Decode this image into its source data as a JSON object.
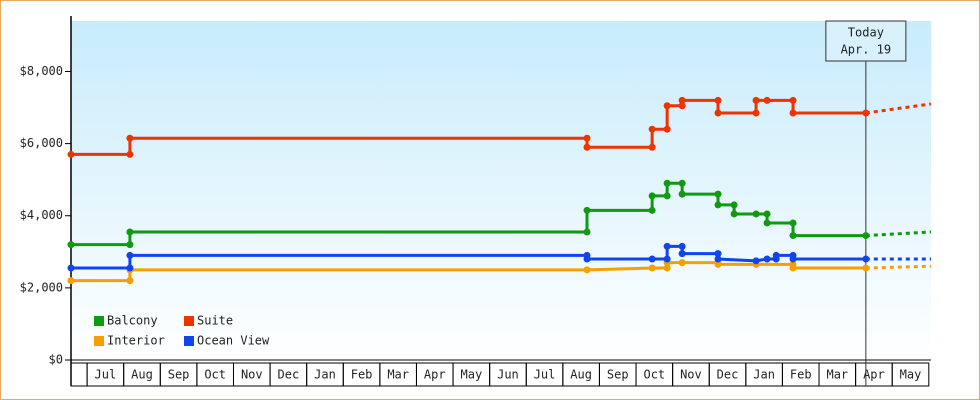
{
  "chart_data": {
    "type": "line",
    "step": true,
    "ylim": [
      0,
      9400
    ],
    "yticks": [
      {
        "value": 0,
        "label": "$0"
      },
      {
        "value": 2000,
        "label": "$2,000"
      },
      {
        "value": 4000,
        "label": "$4,000"
      },
      {
        "value": 6000,
        "label": "$6,000"
      },
      {
        "value": 8000,
        "label": "$8,000"
      }
    ],
    "xlim": [
      -0.44,
      23.06
    ],
    "categories": [
      "Jul",
      "Aug",
      "Sep",
      "Oct",
      "Nov",
      "Dec",
      "Jan",
      "Feb",
      "Mar",
      "Apr",
      "May",
      "Jun",
      "Jul",
      "Aug",
      "Sep",
      "Oct",
      "Nov",
      "Dec",
      "Jan",
      "Feb",
      "Mar",
      "Apr",
      "May"
    ],
    "forecast_x": [
      21.28,
      23.06
    ],
    "series": [
      {
        "name": "Balcony",
        "color": "#119911",
        "x": [
          -0.44,
          1.17,
          1.17,
          13.66,
          13.66,
          15.44,
          15.44,
          15.85,
          15.85,
          16.26,
          16.26,
          17.24,
          17.24,
          17.68,
          17.68,
          18.28,
          18.58,
          18.58,
          19.29,
          19.29,
          21.28
        ],
        "values": [
          3200,
          3200,
          3550,
          3550,
          4150,
          4150,
          4550,
          4550,
          4900,
          4900,
          4600,
          4600,
          4300,
          4300,
          4050,
          4050,
          4050,
          3800,
          3800,
          3450,
          3450
        ],
        "forecast": [
          3450,
          3550
        ]
      },
      {
        "name": "Suite",
        "color": "#ee3300",
        "x": [
          -0.44,
          1.17,
          1.17,
          13.66,
          13.66,
          15.44,
          15.44,
          15.85,
          15.85,
          16.26,
          16.26,
          17.24,
          17.24,
          18.28,
          18.28,
          18.58,
          19.29,
          19.29,
          21.28
        ],
        "values": [
          5700,
          5700,
          6150,
          6150,
          5900,
          5900,
          6400,
          6400,
          7050,
          7050,
          7200,
          7200,
          6850,
          6850,
          7200,
          7200,
          7200,
          6850,
          6850
        ],
        "forecast": [
          6850,
          7100
        ]
      },
      {
        "name": "Interior",
        "color": "#f5a000",
        "x": [
          -0.44,
          1.17,
          1.17,
          13.66,
          15.44,
          15.85,
          15.85,
          16.26,
          17.24,
          17.24,
          18.28,
          19.29,
          19.29,
          21.28
        ],
        "values": [
          2200,
          2200,
          2500,
          2500,
          2550,
          2550,
          2700,
          2700,
          2700,
          2650,
          2650,
          2650,
          2550,
          2550
        ],
        "forecast": [
          2550,
          2600
        ]
      },
      {
        "name": "Ocean View",
        "color": "#1144ee",
        "x": [
          -0.44,
          1.17,
          1.17,
          13.66,
          13.66,
          15.44,
          15.85,
          15.85,
          16.26,
          16.26,
          17.24,
          17.24,
          18.28,
          18.58,
          18.83,
          18.83,
          19.29,
          19.29,
          21.28
        ],
        "values": [
          2550,
          2550,
          2900,
          2900,
          2800,
          2800,
          2800,
          3150,
          3150,
          2950,
          2950,
          2800,
          2750,
          2800,
          2800,
          2900,
          2900,
          2800,
          2800
        ],
        "forecast": [
          2800,
          2800
        ]
      }
    ],
    "annotation": {
      "x": 21.28,
      "lines": [
        "Today",
        "Apr. 19"
      ]
    }
  }
}
